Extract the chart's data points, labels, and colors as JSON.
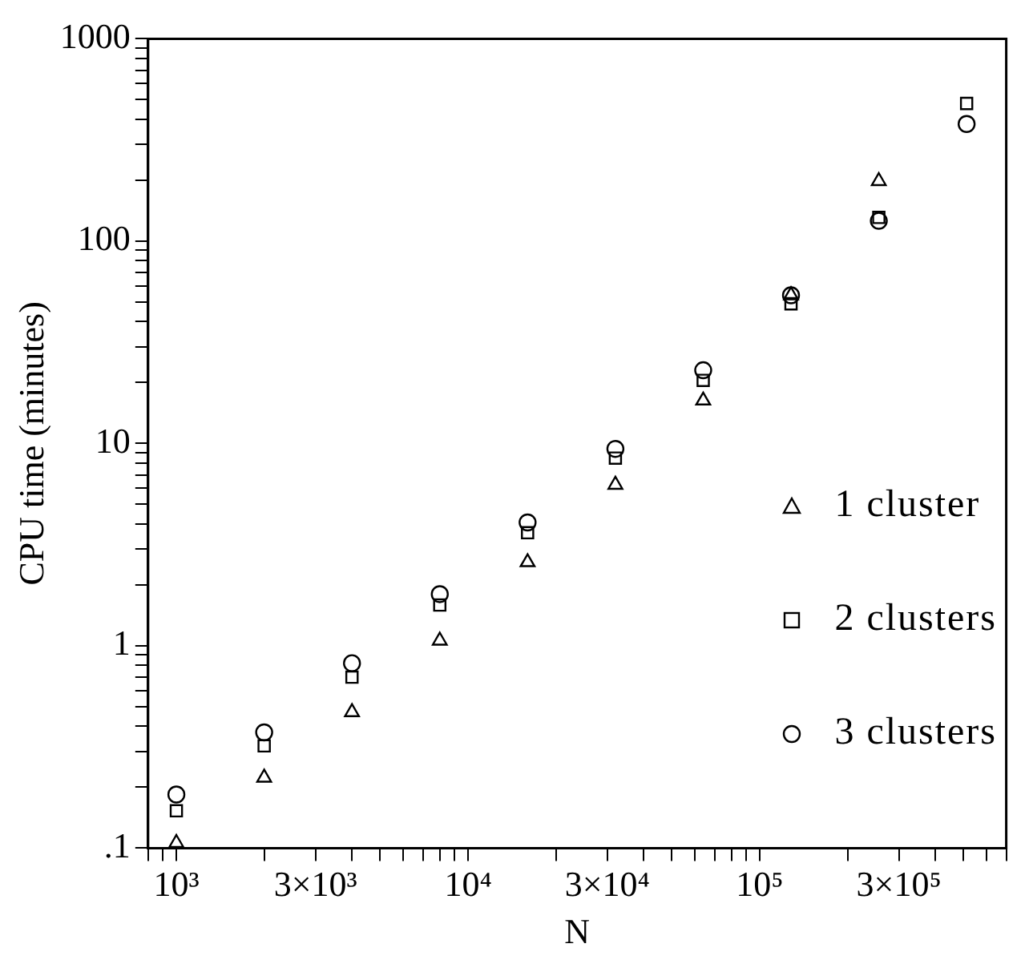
{
  "chart_data": {
    "type": "scatter",
    "xlabel": "N",
    "ylabel": "CPU time (minutes)",
    "log": "xy",
    "grid": false,
    "legend": "right",
    "x": [
      1000,
      2000,
      4000,
      8000,
      16000,
      32000,
      64000,
      128000,
      256000,
      512000
    ],
    "xlim": [
      800,
      700000
    ],
    "xticks": [
      {
        "value": 800,
        "label": null
      },
      {
        "value": 900,
        "label": null
      },
      {
        "value": 1000,
        "label": "10³"
      },
      {
        "value": 2000,
        "label": null
      },
      {
        "value": 3000,
        "label": "3×10³"
      },
      {
        "value": 4000,
        "label": null
      },
      {
        "value": 5000,
        "label": null
      },
      {
        "value": 6000,
        "label": null
      },
      {
        "value": 7000,
        "label": null
      },
      {
        "value": 8000,
        "label": null
      },
      {
        "value": 9000,
        "label": null
      },
      {
        "value": 10000,
        "label": "10⁴"
      },
      {
        "value": 20000,
        "label": null
      },
      {
        "value": 30000,
        "label": "3×10⁴"
      },
      {
        "value": 40000,
        "label": null
      },
      {
        "value": 50000,
        "label": null
      },
      {
        "value": 60000,
        "label": null
      },
      {
        "value": 70000,
        "label": null
      },
      {
        "value": 80000,
        "label": null
      },
      {
        "value": 90000,
        "label": null
      },
      {
        "value": 100000,
        "label": "10⁵"
      },
      {
        "value": 200000,
        "label": null
      },
      {
        "value": 300000,
        "label": "3×10⁵"
      },
      {
        "value": 400000,
        "label": null
      },
      {
        "value": 500000,
        "label": null
      },
      {
        "value": 600000,
        "label": null
      },
      {
        "value": 700000,
        "label": null
      }
    ],
    "ylim": [
      0.1,
      1000
    ],
    "yticks": [
      {
        "value": 0.1,
        "label": ".1"
      },
      {
        "value": 0.2,
        "label": null
      },
      {
        "value": 0.3,
        "label": null
      },
      {
        "value": 0.4,
        "label": null
      },
      {
        "value": 0.5,
        "label": null
      },
      {
        "value": 0.6,
        "label": null
      },
      {
        "value": 0.7,
        "label": null
      },
      {
        "value": 0.8,
        "label": null
      },
      {
        "value": 0.9,
        "label": null
      },
      1,
      {
        "value": 2,
        "label": null
      },
      {
        "value": 3,
        "label": null
      },
      {
        "value": 4,
        "label": null
      },
      {
        "value": 5,
        "label": null
      },
      {
        "value": 6,
        "label": null
      },
      {
        "value": 7,
        "label": null
      },
      {
        "value": 8,
        "label": null
      },
      {
        "value": 9,
        "label": null
      },
      10,
      {
        "value": 20,
        "label": null
      },
      {
        "value": 30,
        "label": null
      },
      {
        "value": 40,
        "label": null
      },
      {
        "value": 50,
        "label": null
      },
      {
        "value": 60,
        "label": null
      },
      {
        "value": 70,
        "label": null
      },
      {
        "value": 80,
        "label": null
      },
      {
        "value": 90,
        "label": null
      },
      100,
      {
        "value": 200,
        "label": null
      },
      {
        "value": 300,
        "label": null
      },
      {
        "value": 400,
        "label": null
      },
      {
        "value": 500,
        "label": null
      },
      {
        "value": 600,
        "label": null
      },
      {
        "value": 700,
        "label": null
      },
      {
        "value": 800,
        "label": null
      },
      {
        "value": 900,
        "label": null
      },
      1000
    ],
    "series": [
      {
        "name": "1 cluster",
        "color": "#000000",
        "marker": "triangle",
        "values": [
          0.106,
          0.223,
          0.47,
          1.06,
          2.59,
          6.25,
          16.3,
          54,
          198,
          null
        ]
      },
      {
        "name": "2 clusters",
        "color": "#000000",
        "marker": "square",
        "values": [
          0.153,
          0.32,
          0.7,
          1.59,
          3.62,
          8.46,
          20.5,
          49,
          131,
          479
        ]
      },
      {
        "name": "3 clusters",
        "color": "#000000",
        "marker": "circle",
        "values": [
          0.184,
          0.373,
          0.82,
          1.8,
          4.07,
          9.4,
          23,
          54,
          126,
          379
        ]
      }
    ]
  }
}
